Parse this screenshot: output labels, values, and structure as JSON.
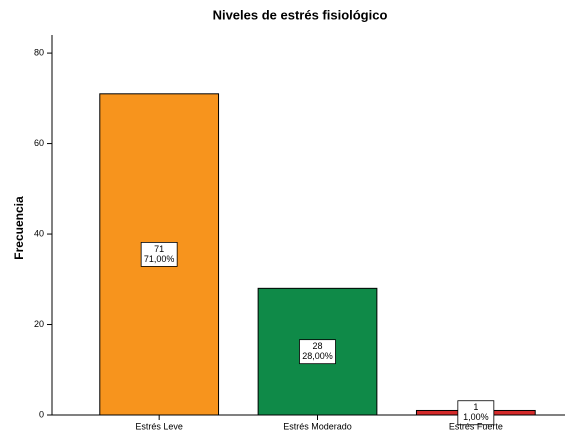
{
  "chart_data": {
    "type": "bar",
    "title": "Niveles de estrés fisiológico",
    "y_label": "Frecuencia",
    "categories": [
      "Estrés Leve",
      "Estrés Moderado",
      "Estrés Fuerte"
    ],
    "values": [
      71,
      28,
      1
    ],
    "percent_labels": [
      "71,00%",
      "28,00%",
      "1,00%"
    ],
    "colors": [
      "#f7941d",
      "#0f8a48",
      "#d42a2a"
    ],
    "ylim": [
      0,
      84
    ],
    "yticks": [
      0,
      20,
      40,
      60,
      80
    ],
    "grid": false
  }
}
